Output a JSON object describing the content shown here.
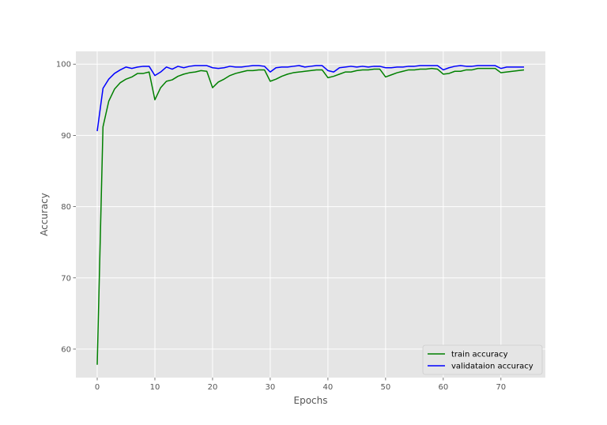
{
  "chart_data": {
    "type": "line",
    "title": "",
    "xlabel": "Epochs",
    "ylabel": "Accuracy",
    "xlim": [
      -3.7,
      77.7
    ],
    "ylim": [
      56,
      101.8
    ],
    "xticks": [
      0,
      10,
      20,
      30,
      40,
      50,
      60,
      70
    ],
    "yticks": [
      60,
      70,
      80,
      90,
      100
    ],
    "grid": true,
    "legend_position": "lower-right",
    "x": [
      0,
      1,
      2,
      3,
      4,
      5,
      6,
      7,
      8,
      9,
      10,
      11,
      12,
      13,
      14,
      15,
      16,
      17,
      18,
      19,
      20,
      21,
      22,
      23,
      24,
      25,
      26,
      27,
      28,
      29,
      30,
      31,
      32,
      33,
      34,
      35,
      36,
      37,
      38,
      39,
      40,
      41,
      42,
      43,
      44,
      45,
      46,
      47,
      48,
      49,
      50,
      51,
      52,
      53,
      54,
      55,
      56,
      57,
      58,
      59,
      60,
      61,
      62,
      63,
      64,
      65,
      66,
      67,
      68,
      69,
      70,
      71,
      72,
      73,
      74
    ],
    "series": [
      {
        "name": "train accuracy",
        "color": "#008000",
        "values": [
          57.8,
          91.2,
          94.8,
          96.5,
          97.4,
          97.9,
          98.2,
          98.7,
          98.7,
          98.9,
          95.0,
          96.7,
          97.6,
          97.8,
          98.3,
          98.6,
          98.8,
          98.9,
          99.1,
          99.0,
          96.7,
          97.5,
          97.9,
          98.4,
          98.7,
          98.9,
          99.1,
          99.1,
          99.2,
          99.2,
          97.6,
          97.9,
          98.3,
          98.6,
          98.8,
          98.9,
          99.0,
          99.1,
          99.2,
          99.2,
          98.1,
          98.3,
          98.6,
          98.9,
          98.9,
          99.1,
          99.2,
          99.2,
          99.3,
          99.3,
          98.2,
          98.5,
          98.8,
          99.0,
          99.2,
          99.2,
          99.3,
          99.3,
          99.4,
          99.3,
          98.6,
          98.7,
          99.0,
          99.0,
          99.2,
          99.2,
          99.4,
          99.4,
          99.4,
          99.4,
          98.8,
          98.9,
          99.0,
          99.1,
          99.2
        ]
      },
      {
        "name": "validataion accuracy",
        "color": "#0000ff",
        "values": [
          90.6,
          96.6,
          97.9,
          98.7,
          99.2,
          99.6,
          99.4,
          99.6,
          99.7,
          99.7,
          98.4,
          98.9,
          99.6,
          99.3,
          99.7,
          99.5,
          99.7,
          99.8,
          99.8,
          99.8,
          99.5,
          99.4,
          99.5,
          99.7,
          99.6,
          99.6,
          99.7,
          99.8,
          99.8,
          99.7,
          98.9,
          99.5,
          99.6,
          99.6,
          99.7,
          99.8,
          99.6,
          99.7,
          99.8,
          99.8,
          99.1,
          98.9,
          99.5,
          99.6,
          99.7,
          99.6,
          99.7,
          99.6,
          99.7,
          99.7,
          99.5,
          99.5,
          99.6,
          99.6,
          99.7,
          99.7,
          99.8,
          99.8,
          99.8,
          99.8,
          99.2,
          99.5,
          99.7,
          99.8,
          99.7,
          99.7,
          99.8,
          99.8,
          99.8,
          99.8,
          99.4,
          99.6,
          99.6,
          99.6,
          99.6
        ]
      }
    ]
  }
}
